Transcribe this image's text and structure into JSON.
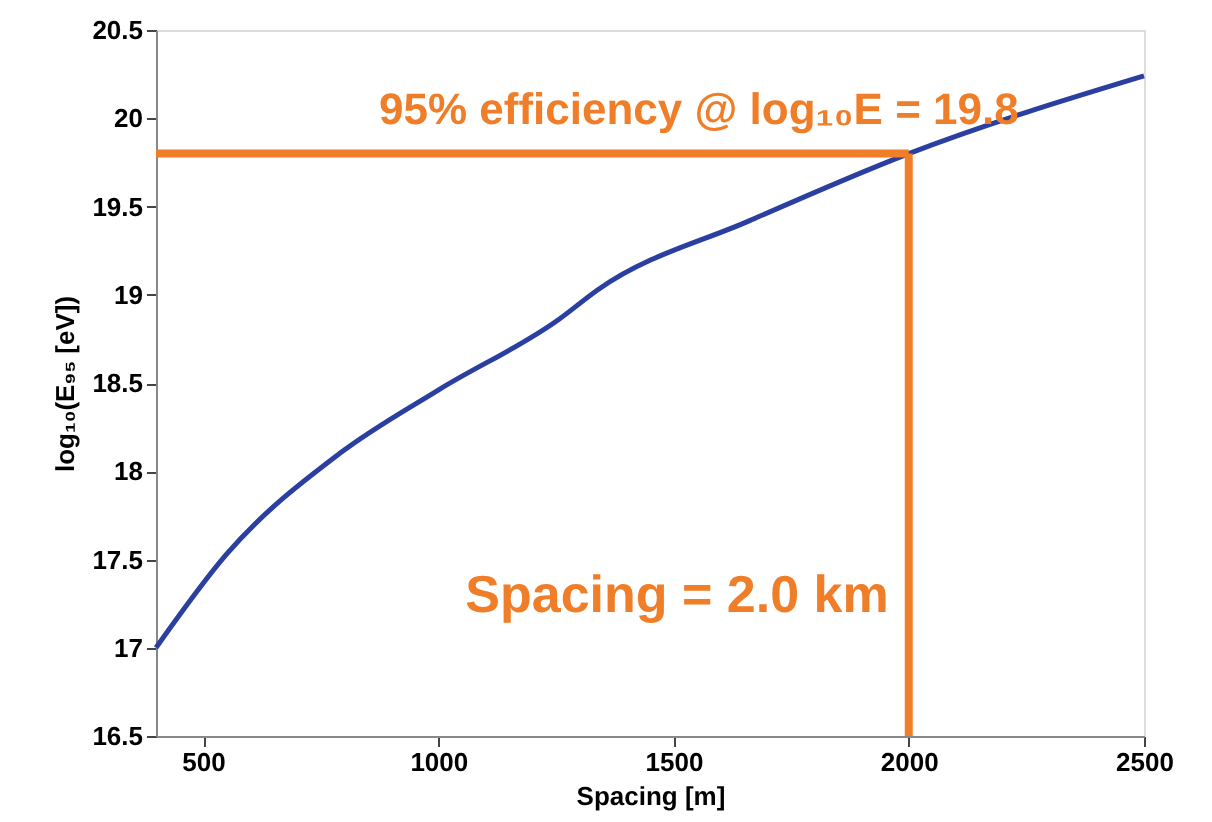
{
  "chart_data": {
    "type": "line",
    "xlabel": "Spacing [m]",
    "ylabel": "log₁₀(E₉₅ [eV])",
    "x": [
      400,
      550,
      790,
      1000,
      1256,
      1340,
      1662,
      2000,
      2500
    ],
    "series": [
      {
        "color": "#2b3fa0",
        "values": [
          17.0,
          17.53,
          18.1,
          18.46,
          18.86,
          19.03,
          19.42,
          19.8,
          20.24
        ]
      }
    ],
    "xlim": [
      400,
      2500
    ],
    "xticks": [
      500,
      1000,
      1500,
      2000,
      2500
    ],
    "ylim": [
      16.5,
      20.5
    ],
    "yticks": [
      16.5,
      17,
      17.5,
      18,
      18.5,
      19,
      19.5,
      20,
      20.5
    ],
    "grid": false,
    "ref_lines": [
      {
        "axis": "y",
        "value": 19.8,
        "label": "95% efficiency  @ log₁₀E = 19.8",
        "color": "#f07d28"
      },
      {
        "axis": "x",
        "value": 2000,
        "color": "#f07d28"
      }
    ],
    "annotations": [
      "Spacing = 2.0 km"
    ]
  }
}
